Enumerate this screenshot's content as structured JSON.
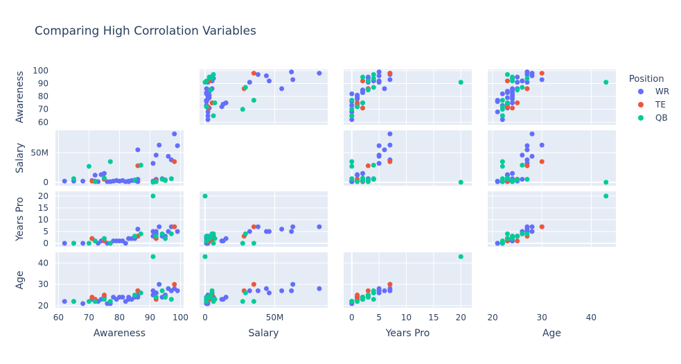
{
  "chart_data": {
    "type": "scatter",
    "title": "Comparing High Corrolation Variables",
    "dimensions": [
      "Awareness",
      "Salary",
      "Years Pro",
      "Age"
    ],
    "axes": {
      "Awareness": {
        "range": [
          59,
          101
        ],
        "ticks": [
          60,
          70,
          80,
          90,
          100
        ],
        "tick_labels": [
          "60",
          "70",
          "80",
          "90",
          "100"
        ],
        "y_ticks": [
          60,
          70,
          80,
          90,
          100
        ],
        "y_tick_labels": [
          "60",
          "70",
          "80",
          "90",
          "100"
        ],
        "y_range": [
          58,
          101
        ]
      },
      "Salary": {
        "range": [
          -4,
          88
        ],
        "ticks": [
          0,
          50
        ],
        "tick_labels": [
          "0",
          "50M"
        ],
        "y_ticks": [
          0,
          50
        ],
        "y_tick_labels": [
          "0",
          "50M"
        ],
        "y_range": [
          -6,
          88
        ]
      },
      "Years Pro": {
        "range": [
          -1.5,
          22
        ],
        "ticks": [
          0,
          5,
          10,
          15,
          20
        ],
        "tick_labels": [
          "0",
          "5",
          "10",
          "15",
          "20"
        ],
        "y_ticks": [
          0,
          5,
          10,
          15,
          20
        ],
        "y_tick_labels": [
          "0",
          "5",
          "10",
          "15",
          "20"
        ],
        "y_range": [
          -1.5,
          22
        ]
      },
      "Age": {
        "range": [
          19,
          45
        ],
        "ticks": [
          20,
          30,
          40
        ],
        "tick_labels": [
          "20",
          "30",
          "40"
        ],
        "y_ticks": [
          20,
          30,
          40
        ],
        "y_tick_labels": [
          "20",
          "30",
          "40"
        ],
        "y_range": [
          19,
          45
        ]
      }
    },
    "legend": {
      "title": "Position",
      "placement": "right"
    },
    "series": [
      {
        "name": "WR",
        "color": "#636efa",
        "points": [
          [
            62,
            2,
            0,
            22
          ],
          [
            65,
            2,
            0,
            22
          ],
          [
            68,
            2,
            0,
            21
          ],
          [
            71,
            3,
            2,
            23
          ],
          [
            72,
            12,
            1,
            23
          ],
          [
            73,
            1,
            0,
            22
          ],
          [
            74,
            13,
            1,
            23
          ],
          [
            75,
            15,
            2,
            24
          ],
          [
            76,
            1,
            0,
            21
          ],
          [
            77,
            1,
            0,
            21
          ],
          [
            78,
            2,
            1,
            24
          ],
          [
            79,
            3,
            1,
            23
          ],
          [
            80,
            2,
            1,
            24
          ],
          [
            81,
            3,
            1,
            24
          ],
          [
            82,
            1,
            0,
            22
          ],
          [
            83,
            2,
            2,
            24
          ],
          [
            84,
            3,
            2,
            23
          ],
          [
            85,
            3,
            2,
            24
          ],
          [
            86,
            1,
            3,
            24
          ],
          [
            86,
            5,
            3,
            25
          ],
          [
            86,
            55,
            6,
            27
          ],
          [
            91,
            32,
            5,
            27
          ],
          [
            91,
            2,
            3,
            25
          ],
          [
            92,
            5,
            4,
            26
          ],
          [
            92,
            46,
            5,
            26
          ],
          [
            93,
            63,
            7,
            30
          ],
          [
            94,
            6,
            3,
            24
          ],
          [
            95,
            4,
            3,
            25
          ],
          [
            96,
            44,
            5,
            28
          ],
          [
            97,
            38,
            7,
            27
          ],
          [
            98,
            82,
            7,
            28
          ],
          [
            99,
            62,
            5,
            27
          ],
          [
            83,
            1,
            2,
            23
          ]
        ]
      },
      {
        "name": "TE",
        "color": "#ef553b",
        "points": [
          [
            71,
            2,
            2,
            24
          ],
          [
            72,
            2,
            1,
            23
          ],
          [
            75,
            5,
            1,
            25
          ],
          [
            86,
            28,
            3,
            27
          ],
          [
            92,
            3,
            2,
            23
          ],
          [
            98,
            35,
            7,
            30
          ]
        ]
      },
      {
        "name": "QB",
        "color": "#00cc96",
        "points": [
          [
            65,
            6,
            0,
            22
          ],
          [
            70,
            27,
            0,
            22
          ],
          [
            72,
            1,
            1,
            22
          ],
          [
            75,
            7,
            2,
            23
          ],
          [
            77,
            35,
            0,
            22
          ],
          [
            87,
            29,
            4,
            26
          ],
          [
            91,
            0,
            20,
            43
          ],
          [
            92,
            1,
            3,
            24
          ],
          [
            94,
            5,
            4,
            27
          ],
          [
            95,
            3,
            2,
            24
          ],
          [
            97,
            6,
            4,
            23
          ],
          [
            85,
            4,
            3,
            25
          ]
        ]
      }
    ],
    "grid": true,
    "diagonal_empty": true
  }
}
